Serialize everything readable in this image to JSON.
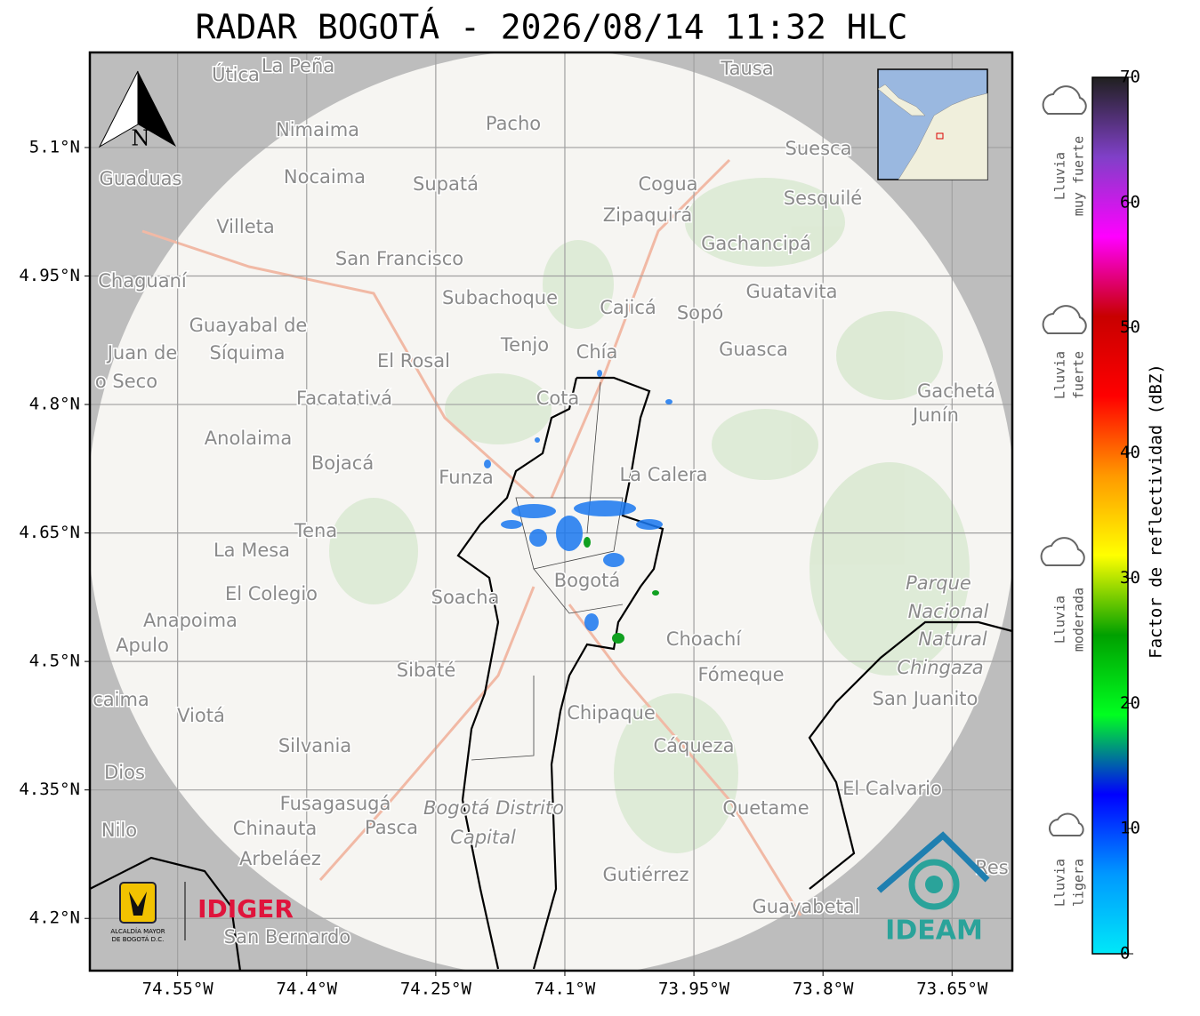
{
  "title": "RADAR BOGOTÁ - 2026/08/14 11:32 HLC",
  "map": {
    "xlim": [
      -74.652,
      -73.58
    ],
    "ylim": [
      4.139,
      5.211
    ],
    "grid": true,
    "xticks": [
      {
        "value": -74.55,
        "label": "74.55°W"
      },
      {
        "value": -74.4,
        "label": "74.4°W"
      },
      {
        "value": -74.25,
        "label": "74.25°W"
      },
      {
        "value": -74.1,
        "label": "74.1°W"
      },
      {
        "value": -73.95,
        "label": "73.95°W"
      },
      {
        "value": -73.8,
        "label": "73.8°W"
      },
      {
        "value": -73.65,
        "label": "73.65°W"
      }
    ],
    "yticks": [
      {
        "value": 5.1,
        "label": "5.1°N"
      },
      {
        "value": 4.95,
        "label": "4.95°N"
      },
      {
        "value": 4.8,
        "label": "4.8°N"
      },
      {
        "value": 4.65,
        "label": "4.65°N"
      },
      {
        "value": 4.5,
        "label": "4.5°N"
      },
      {
        "value": 4.35,
        "label": "4.35°N"
      },
      {
        "value": 4.2,
        "label": "4.2°N"
      }
    ],
    "north": "N",
    "places": [
      "Útica",
      "La Peña",
      "Tausa",
      "Pacho",
      "Nimaima",
      "Guaduas",
      "Nocaima",
      "Supatá",
      "Cogua",
      "Suesca",
      "Sesquilé",
      "Zipaquirá",
      "Villeta",
      "Gachancipá",
      "San Francisco",
      "Chaguaní",
      "Guatavita",
      "Subachoque",
      "Cajicá",
      "Sopó",
      "Guayabal de",
      "Síquima",
      "Juan de",
      "Tenjo",
      "Chía",
      "Guasca",
      "o Seco",
      "El Rosal",
      "Facatativá",
      "Gachetá",
      "Cota",
      "Junín",
      "Anolaima",
      "Bojacá",
      "Funza",
      "La Calera",
      "Tena",
      "La Mesa",
      "El Colegio",
      "Soacha",
      "Bogotá",
      "Parque",
      "Nacional",
      "Natural",
      "Chingaza",
      "Anapoima",
      "Apulo",
      "Choachí",
      "Sibaté",
      "Fómeque",
      "caima",
      "San Juanito",
      "Viotá",
      "Chipaque",
      "Silvania",
      "Cáqueza",
      "Dios",
      "El Calvario",
      "Fusagasugá",
      "Bogotá Distrito",
      "Quetame",
      "Nilo",
      "Chinauta",
      "Pasca",
      "Capital",
      "Arbeláez",
      "Gutiérrez",
      "Res",
      "Guayabetal",
      "San Bernardo"
    ]
  },
  "colorbar": {
    "label": "Factor de reflectividad (dBZ)",
    "lim": [
      0,
      70
    ],
    "ticks": [
      0,
      10,
      20,
      30,
      40,
      50,
      60,
      70
    ],
    "colors": [
      "#00e8f8",
      "#0098ff",
      "#0000ff",
      "#00ff20",
      "#00a000",
      "#ffff00",
      "#ff9900",
      "#ff0000",
      "#c80000",
      "#ff00ff",
      "#8040c8",
      "#202020"
    ]
  },
  "intensity_labels": [
    [
      "Lluvia",
      "muy fuerte"
    ],
    [
      "Lluvia",
      "fuerte"
    ],
    [
      "Lluvia",
      "moderada"
    ],
    [
      "Lluvia",
      "ligera"
    ]
  ],
  "logos": {
    "alcaldia": [
      "ALCALDÍA MAYOR",
      "DE BOGOTÁ D.C."
    ],
    "idiger": "IDIGER",
    "ideam": "IDEAM"
  }
}
